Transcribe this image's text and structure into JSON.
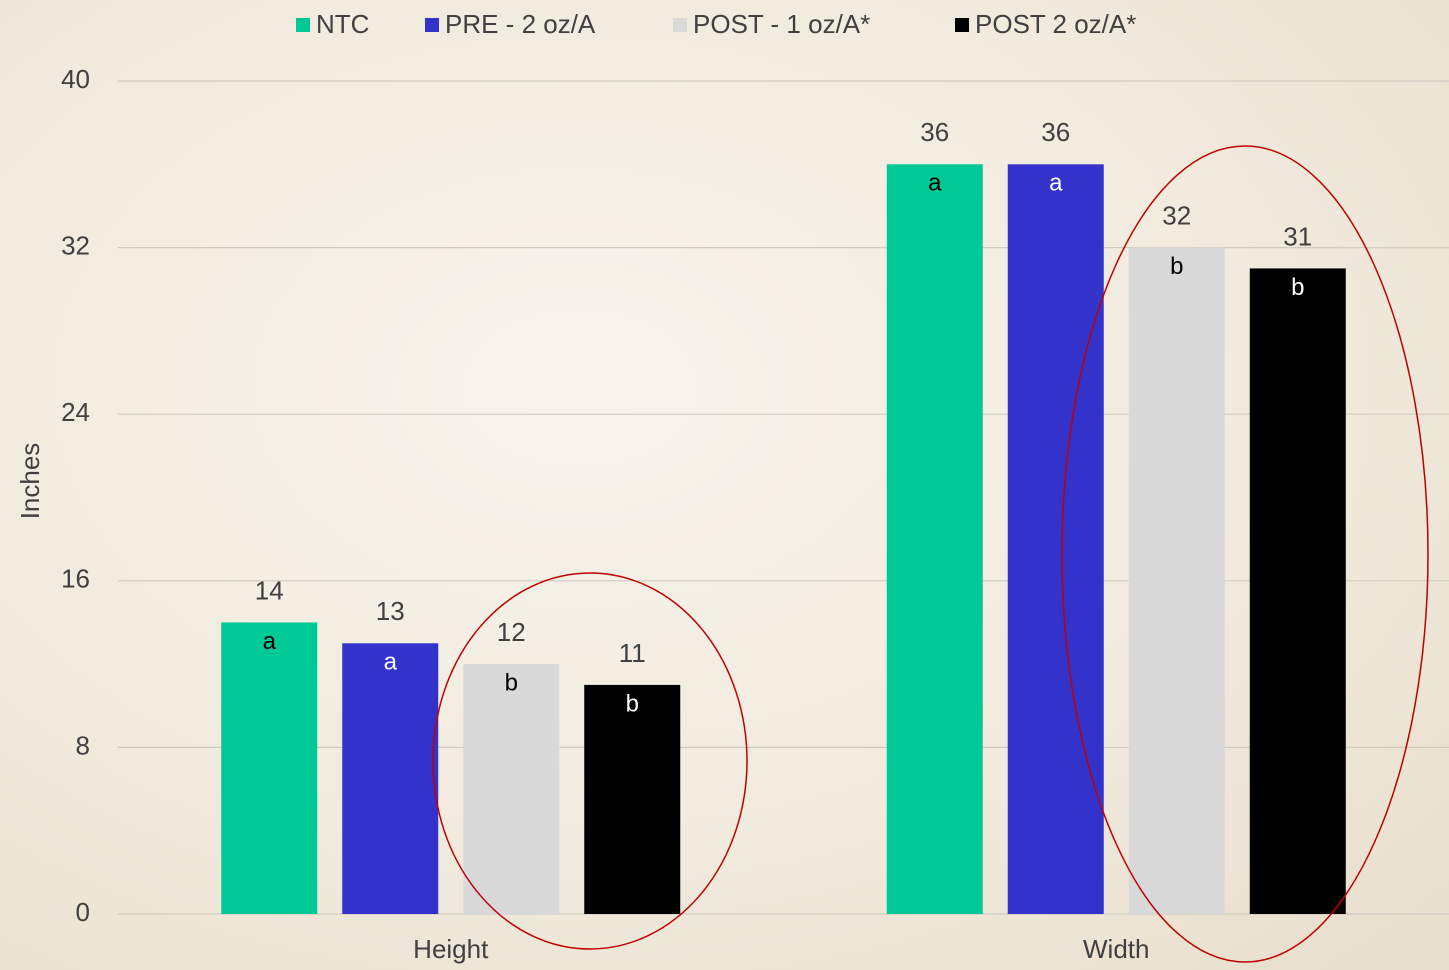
{
  "chart_data": {
    "type": "bar",
    "y_label": "Inches",
    "categories": [
      "Height",
      "Width"
    ],
    "series": [
      {
        "name": "NTC",
        "color": "#00c896",
        "values": [
          14,
          36
        ],
        "annotations": [
          "a",
          "a"
        ]
      },
      {
        "name": "PRE - 2 oz/A",
        "color": "#3333cc",
        "values": [
          13,
          36
        ],
        "annotations": [
          "a",
          "a"
        ]
      },
      {
        "name": "POST - 1 oz/A*",
        "color": "#d9d9d9",
        "values": [
          12,
          32
        ],
        "annotations": [
          "b",
          "b"
        ]
      },
      {
        "name": "POST 2 oz/A*",
        "color": "#000000",
        "values": [
          11,
          31
        ],
        "annotations": [
          "b",
          "b"
        ]
      }
    ],
    "ylim": [
      0,
      40
    ],
    "yticks": [
      0,
      8,
      16,
      24,
      32,
      40
    ],
    "grid": true,
    "legend": "top"
  }
}
